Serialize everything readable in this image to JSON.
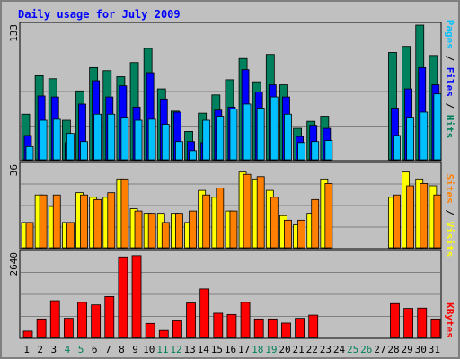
{
  "chart_data": {
    "type": "bar",
    "title": "Daily usage for July 2009",
    "days": [
      "1",
      "2",
      "3",
      "4",
      "5",
      "6",
      "7",
      "8",
      "9",
      "10",
      "11",
      "12",
      "13",
      "14",
      "15",
      "16",
      "17",
      "18",
      "19",
      "20",
      "21",
      "22",
      "23",
      "24",
      "25",
      "26",
      "27",
      "28",
      "29",
      "30",
      "31"
    ],
    "weekend_days": [
      "4",
      "5",
      "11",
      "12",
      "18",
      "19",
      "25",
      "26"
    ],
    "panels": [
      {
        "name": "hits-files-pages",
        "max_label": "133",
        "ylim": [
          0,
          133
        ],
        "series": [
          {
            "name": "Hits",
            "color": "#00805c",
            "values": [
              45,
              83,
              80,
              39,
              68,
              91,
              88,
              82,
              96,
              110,
              70,
              48,
              28,
              46,
              64,
              79,
              100,
              77,
              104,
              74,
              31,
              38,
              43,
              0,
              0,
              0,
              0,
              106,
              112,
              133,
              103
            ]
          },
          {
            "name": "Files",
            "color": "#0000ff",
            "values": [
              24,
              63,
              62,
              17,
              55,
              78,
              62,
              73,
              52,
              86,
              60,
              47,
              18,
              17,
              49,
              52,
              89,
              67,
              74,
              62,
              23,
              34,
              31,
              0,
              0,
              0,
              0,
              51,
              70,
              91,
              74
            ]
          },
          {
            "name": "Pages",
            "color": "#00c0ff",
            "values": [
              13,
              39,
              40,
              26,
              18,
              45,
              45,
              42,
              39,
              40,
              35,
              18,
              9,
              39,
              43,
              50,
              55,
              51,
              62,
              45,
              17,
              18,
              19,
              0,
              0,
              0,
              0,
              24,
              42,
              47,
              65
            ]
          }
        ]
      },
      {
        "name": "visits-sites",
        "max_label": "36",
        "ylim": [
          0,
          36
        ],
        "series": [
          {
            "name": "Visits",
            "color": "#ffff00",
            "values": [
              11,
              23,
              18,
              11,
              24,
              22,
              22,
              30,
              17,
              15,
              15,
              15,
              11,
              25,
              22,
              16,
              33,
              30,
              25,
              14,
              10,
              15,
              30,
              0,
              0,
              0,
              0,
              22,
              33,
              30,
              27
            ]
          },
          {
            "name": "Sites",
            "color": "#ff8000",
            "values": [
              11,
              23,
              23,
              11,
              23,
              21,
              24,
              30,
              16,
              15,
              11,
              15,
              16,
              23,
              26,
              16,
              32,
              31,
              22,
              12,
              12,
              21,
              28,
              0,
              0,
              0,
              0,
              23,
              27,
              28,
              23
            ]
          }
        ]
      },
      {
        "name": "kbytes",
        "max_label": "2640",
        "ylim": [
          0,
          2640
        ],
        "series": [
          {
            "name": "KBytes",
            "color": "#ff0000",
            "values": [
              200,
              580,
              1150,
              600,
              1100,
              1020,
              1280,
              2520,
              2560,
              440,
              220,
              520,
              1080,
              1520,
              760,
              720,
              1100,
              580,
              580,
              450,
              600,
              700,
              0,
              0,
              0,
              0,
              0,
              1060,
              910,
              920,
              580
            ]
          }
        ]
      }
    ]
  }
}
